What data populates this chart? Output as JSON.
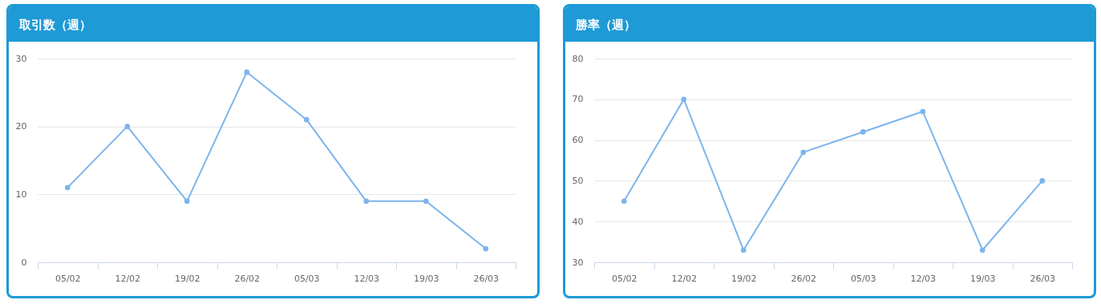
{
  "chart_data": [
    {
      "type": "line",
      "title": "取引数（週）",
      "categories": [
        "05/02",
        "12/02",
        "19/02",
        "26/02",
        "05/03",
        "12/03",
        "19/03",
        "26/03"
      ],
      "values": [
        11,
        20,
        9,
        28,
        21,
        9,
        9,
        2
      ],
      "color": "#7cb5ec",
      "ylim": [
        0,
        30
      ],
      "yticks": [
        0,
        10,
        20,
        30
      ],
      "grid": "y",
      "marker": "circle"
    },
    {
      "type": "line",
      "title": "勝率（週）",
      "categories": [
        "05/02",
        "12/02",
        "19/02",
        "26/02",
        "05/03",
        "12/03",
        "19/03",
        "26/03"
      ],
      "values": [
        45,
        70,
        33,
        57,
        62,
        67,
        33,
        50
      ],
      "color": "#7cb5ec",
      "ylim": [
        30,
        80
      ],
      "yticks": [
        30,
        40,
        50,
        60,
        70,
        80
      ],
      "grid": "y",
      "marker": "circle"
    }
  ]
}
